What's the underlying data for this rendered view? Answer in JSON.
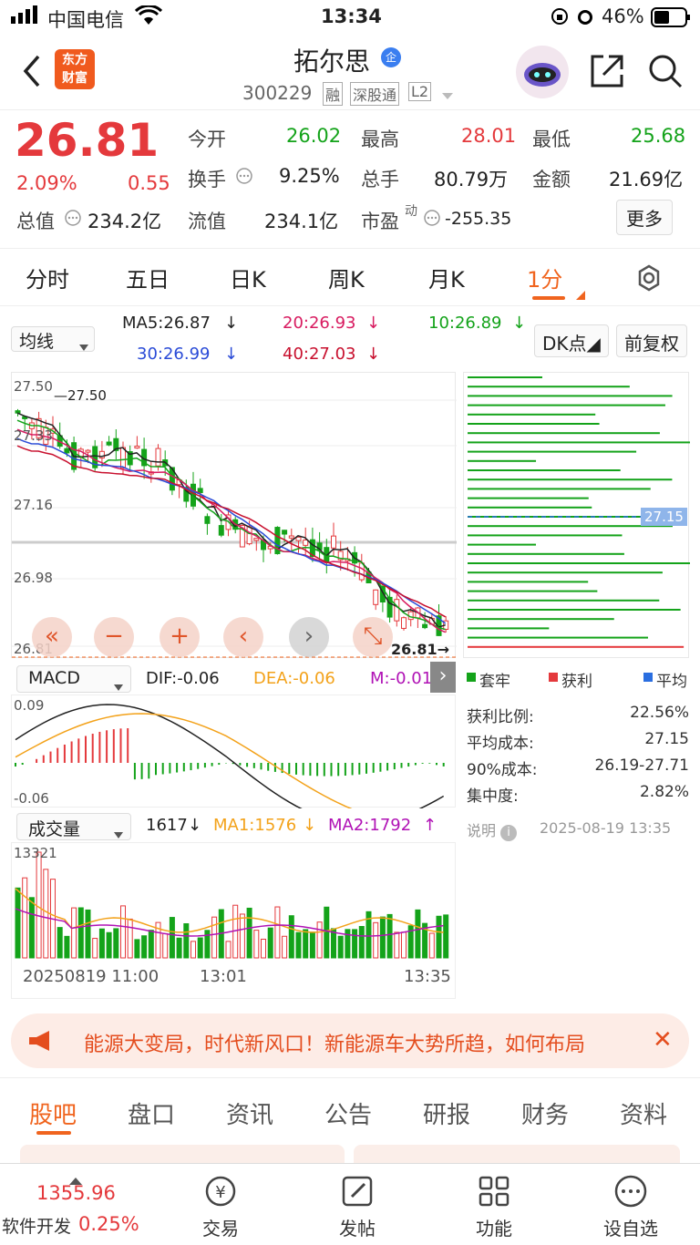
{
  "status": {
    "carrier": "中国电信",
    "time": "13:34",
    "battery": "46%"
  },
  "header": {
    "logo_top": "东方",
    "logo_bottom": "财富",
    "stock_name": "拓尔思",
    "badge": "企",
    "code": "300229",
    "tag_rong": "融",
    "tag_sgt": "深股通",
    "tag_level": "L2"
  },
  "quote": {
    "price": "26.81",
    "change_pct": "2.09%",
    "change": "0.55",
    "open_label": "今开",
    "open": "26.02",
    "high_label": "最高",
    "high": "28.01",
    "low_label": "最低",
    "low": "25.68",
    "turnover_label": "换手",
    "turnover": "9.25%",
    "vol_label": "总手",
    "vol": "80.79万",
    "amount_label": "金额",
    "amount": "21.69亿",
    "mktcap_label": "总值",
    "mktcap": "234.2亿",
    "float_label": "流值",
    "float": "234.1亿",
    "pe_label": "市盈",
    "pe_sup": "动",
    "pe": "-255.35",
    "more": "更多"
  },
  "tabs": [
    "分时",
    "五日",
    "日K",
    "周K",
    "月K",
    "1分"
  ],
  "ma": {
    "select": "均线",
    "ma5": "MA5:26.87",
    "ma20": "20:26.93",
    "ma10": "10:26.89",
    "ma30": "30:26.99",
    "ma40": "40:27.03",
    "dk": "DK点",
    "fq": "前复权"
  },
  "price_axis": {
    "p1": "27.50",
    "p2": "27.33",
    "p3": "27.16",
    "p4": "26.98",
    "p5": "26.81",
    "hi_mark": "27.50",
    "last_mark": "26.81"
  },
  "chip": {
    "avg_tag": "27.15",
    "legend_tl": "套牢",
    "legend_hl": "获利",
    "legend_avg": "平均",
    "stats": [
      {
        "k": "获利比例:",
        "v": "22.56%"
      },
      {
        "k": "平均成本:",
        "v": "27.15"
      },
      {
        "k": "90%成本:",
        "v": "26.19-27.71"
      },
      {
        "k": "集中度:",
        "v": "2.82%"
      }
    ],
    "note": "说明",
    "time": "2025-08-19 13:35"
  },
  "macd": {
    "select": "MACD",
    "dif": "DIF:-0.06",
    "dea": "DEA:-0.06",
    "m": "M:-0.01",
    "top": "0.09",
    "bot": "-0.06"
  },
  "volume": {
    "select": "成交量",
    "v": "1617",
    "ma1": "MA1:1576",
    "ma2": "MA2:1792",
    "top": "13321",
    "t1": "20250819 11:00",
    "t2": "13:01",
    "t3": "13:35"
  },
  "banner": {
    "text": "能源大变局，时代新风口！新能源车大势所趋，如何布局"
  },
  "bottom_tabs": [
    "股吧",
    "盘口",
    "资讯",
    "公告",
    "研报",
    "财务",
    "资料"
  ],
  "nav": {
    "index_val": "1355.96",
    "index_name": "软件开发",
    "index_pct": "0.25%",
    "trade": "交易",
    "post": "发帖",
    "func": "功能",
    "fav": "设自选"
  }
}
